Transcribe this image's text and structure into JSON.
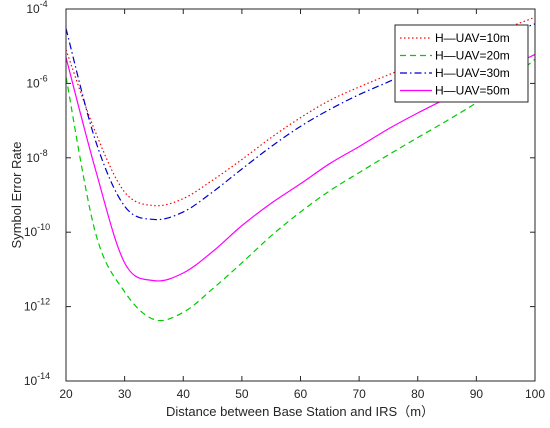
{
  "chart_data": {
    "type": "line",
    "title": "",
    "xlabel": "Distance between Base Station and IRS（m）",
    "ylabel": "Symbol Error Rate",
    "xlim": [
      20,
      100
    ],
    "ylim": [
      1e-14,
      0.0001
    ],
    "yscale": "log",
    "x_ticks": [
      20,
      30,
      40,
      50,
      60,
      70,
      80,
      90,
      100
    ],
    "y_ticks": [
      {
        "base": "10",
        "exp": "-14",
        "value": 1e-14
      },
      {
        "base": "10",
        "exp": "-12",
        "value": 1e-12
      },
      {
        "base": "10",
        "exp": "-10",
        "value": 1e-10
      },
      {
        "base": "10",
        "exp": "-8",
        "value": 1e-08
      },
      {
        "base": "10",
        "exp": "-6",
        "value": 1e-06
      },
      {
        "base": "10",
        "exp": "-4",
        "value": 0.0001
      }
    ],
    "grid": false,
    "legend_position": "top-right",
    "series": [
      {
        "name": "H—UAV=10m",
        "color": "#ff0000",
        "dash": "dotted",
        "x": [
          20,
          25,
          30,
          35,
          40,
          45,
          50,
          55,
          60,
          65,
          70,
          75,
          80,
          85,
          90,
          95,
          100
        ],
        "y": [
          8e-06,
          5e-08,
          1.2e-09,
          5.2e-10,
          8e-10,
          2.5e-09,
          9e-09,
          3.5e-08,
          1.2e-07,
          3.5e-07,
          8e-07,
          1.7e-06,
          3.5e-06,
          7e-06,
          1.4e-05,
          3e-05,
          6e-05
        ]
      },
      {
        "name": "H—UAV=20m",
        "color": "#00cc00",
        "dash": "dashed",
        "x": [
          20,
          25,
          30,
          35,
          40,
          45,
          50,
          55,
          60,
          65,
          70,
          75,
          80,
          85,
          90,
          95,
          100
        ],
        "y": [
          1.5e-06,
          1e-10,
          2.5e-12,
          4.5e-13,
          7e-13,
          3e-12,
          1.5e-11,
          8e-11,
          3.5e-10,
          1.3e-09,
          4e-09,
          1.2e-08,
          3.5e-08,
          1e-07,
          3e-07,
          1e-06,
          4.5e-06
        ]
      },
      {
        "name": "H—UAV=30m",
        "color": "#0000cc",
        "dash": "dashdot",
        "x": [
          20,
          25,
          30,
          35,
          40,
          45,
          50,
          55,
          60,
          65,
          70,
          75,
          80,
          85,
          90,
          95,
          100
        ],
        "y": [
          3e-05,
          3e-08,
          5e-10,
          2.2e-10,
          3.5e-10,
          1.2e-09,
          5e-09,
          2e-08,
          7e-08,
          2e-07,
          5e-07,
          1.1e-06,
          2.5e-06,
          5e-06,
          1e-05,
          2e-05,
          4e-05
        ]
      },
      {
        "name": "H—UAV=50m",
        "color": "#ff00ff",
        "dash": "solid",
        "x": [
          20,
          25,
          30,
          35,
          40,
          45,
          50,
          55,
          60,
          65,
          70,
          75,
          80,
          85,
          90,
          95,
          100
        ],
        "y": [
          5e-06,
          5e-09,
          1.5e-11,
          5e-12,
          8e-12,
          3e-11,
          1.5e-10,
          6e-10,
          2e-09,
          7e-09,
          2e-08,
          6e-08,
          1.6e-07,
          4e-07,
          1e-06,
          2.5e-06,
          6e-06
        ]
      }
    ]
  }
}
